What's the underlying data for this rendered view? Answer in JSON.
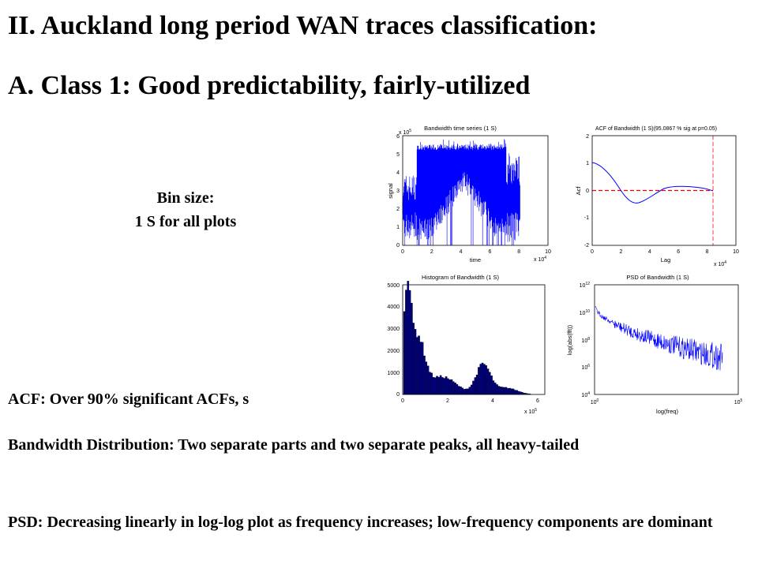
{
  "slide": {
    "title": "II. Auckland long period WAN traces classification:",
    "subtitle": "A. Class 1: Good predictability, fairly-utilized",
    "bin_size_line1": "Bin size:",
    "bin_size_line2": "1 S for all plots",
    "acf_text": "ACF: Over 90% significant ACFs, s",
    "bandwidth_text": "Bandwidth Distribution: Two separate parts and two separate peaks, all heavy-tailed",
    "psd_text": "PSD: Decreasing linearly in log-log plot as frequency increases; low-frequency components are dominant"
  },
  "plots": {
    "p1": {
      "title": "Bandwidth time series (1 S)",
      "xlabel": "time",
      "ylabel": "signal",
      "x_ticks": [
        "0",
        "2",
        "4",
        "6",
        "8",
        "10"
      ],
      "y_ticks": [
        "0",
        "1",
        "2",
        "3",
        "4",
        "5",
        "6"
      ],
      "x_mult": "x 10",
      "x_mult_exp": "4",
      "y_mult": "x 10",
      "y_mult_exp": "5"
    },
    "p2": {
      "title": "ACF of Bandwidth (1 S)(95.0867 % sig at p=0.05)",
      "xlabel": "Lag",
      "ylabel": "Acf",
      "x_ticks": [
        "0",
        "2",
        "4",
        "6",
        "8",
        "10"
      ],
      "y_ticks": [
        "-2",
        "-1",
        "0",
        "1",
        "2"
      ],
      "x_mult": "x 10",
      "x_mult_exp": "4"
    },
    "p3": {
      "title": "Histogram of Bandwidth (1 S)",
      "x_ticks": [
        "0",
        "2",
        "4",
        "6"
      ],
      "y_ticks": [
        "0",
        "1000",
        "2000",
        "3000",
        "4000",
        "5000"
      ],
      "x_mult": "x 10",
      "x_mult_exp": "5"
    },
    "p4": {
      "title": "PSD of Bandwidth (1 S)",
      "xlabel": "log(freq)",
      "ylabel": "log(abs(fft))",
      "x_ticks": [
        "10",
        "10"
      ],
      "x_tick_exps": [
        "0",
        "5"
      ],
      "y_ticks": [
        "10",
        "10",
        "10",
        "10",
        "10"
      ],
      "y_tick_exps": [
        "4",
        "6",
        "8",
        "10",
        "12"
      ]
    }
  },
  "colors": {
    "series": "#0000ff",
    "significance": "#ff0000",
    "histogram_fill": "#000080",
    "axis": "#000000"
  }
}
